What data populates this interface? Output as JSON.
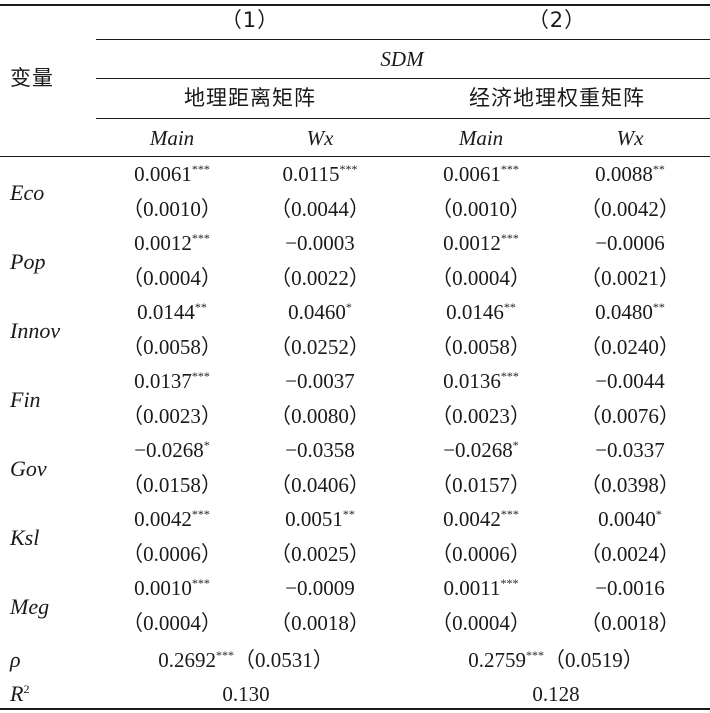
{
  "header": {
    "col1": "（1）",
    "col2": "（2）",
    "variable_label": "变量",
    "model": "SDM",
    "matrix1": "地理距离矩阵",
    "matrix2": "经济地理权重矩阵",
    "sub": [
      "Main",
      "Wx",
      "Main",
      "Wx"
    ]
  },
  "rows": [
    {
      "name": "Eco",
      "coef": [
        {
          "v": "0.0061",
          "s": "***"
        },
        {
          "v": "0.0115",
          "s": "***"
        },
        {
          "v": "0.0061",
          "s": "***"
        },
        {
          "v": "0.0088",
          "s": "**"
        }
      ],
      "se": [
        "（0.0010）",
        "（0.0044）",
        "（0.0010）",
        "（0.0042）"
      ]
    },
    {
      "name": "Pop",
      "coef": [
        {
          "v": "0.0012",
          "s": "***"
        },
        {
          "v": "−0.0003",
          "s": ""
        },
        {
          "v": "0.0012",
          "s": "***"
        },
        {
          "v": "−0.0006",
          "s": ""
        }
      ],
      "se": [
        "（0.0004）",
        "（0.0022）",
        "（0.0004）",
        "（0.0021）"
      ]
    },
    {
      "name": "Innov",
      "coef": [
        {
          "v": "0.0144",
          "s": "**"
        },
        {
          "v": "0.0460",
          "s": "*"
        },
        {
          "v": "0.0146",
          "s": "**"
        },
        {
          "v": "0.0480",
          "s": "**"
        }
      ],
      "se": [
        "（0.0058）",
        "（0.0252）",
        "（0.0058）",
        "（0.0240）"
      ]
    },
    {
      "name": "Fin",
      "coef": [
        {
          "v": "0.0137",
          "s": "***"
        },
        {
          "v": "−0.0037",
          "s": ""
        },
        {
          "v": "0.0136",
          "s": "***"
        },
        {
          "v": "−0.0044",
          "s": ""
        }
      ],
      "se": [
        "（0.0023）",
        "（0.0080）",
        "（0.0023）",
        "（0.0076）"
      ]
    },
    {
      "name": "Gov",
      "coef": [
        {
          "v": "−0.0268",
          "s": "*"
        },
        {
          "v": "−0.0358",
          "s": ""
        },
        {
          "v": "−0.0268",
          "s": "*"
        },
        {
          "v": "−0.0337",
          "s": ""
        }
      ],
      "se": [
        "（0.0158）",
        "（0.0406）",
        "（0.0157）",
        "（0.0398）"
      ]
    },
    {
      "name": "Ksl",
      "coef": [
        {
          "v": "0.0042",
          "s": "***"
        },
        {
          "v": "0.0051",
          "s": "**"
        },
        {
          "v": "0.0042",
          "s": "***"
        },
        {
          "v": "0.0040",
          "s": "*"
        }
      ],
      "se": [
        "（0.0006）",
        "（0.0025）",
        "（0.0006）",
        "（0.0024）"
      ]
    },
    {
      "name": "Meg",
      "coef": [
        {
          "v": "0.0010",
          "s": "***"
        },
        {
          "v": "−0.0009",
          "s": ""
        },
        {
          "v": "0.0011",
          "s": "***"
        },
        {
          "v": "−0.0016",
          "s": ""
        }
      ],
      "se": [
        "（0.0004）",
        "（0.0018）",
        "（0.0004）",
        "（0.0018）"
      ]
    }
  ],
  "rho": {
    "label": "ρ",
    "m1": {
      "v": "0.2692",
      "s": "***",
      "se": "（0.0531）"
    },
    "m2": {
      "v": "0.2759",
      "s": "***",
      "se": "（0.0519）"
    }
  },
  "r2": {
    "label": "R",
    "sup": "2",
    "m1": "0.130",
    "m2": "0.128"
  }
}
